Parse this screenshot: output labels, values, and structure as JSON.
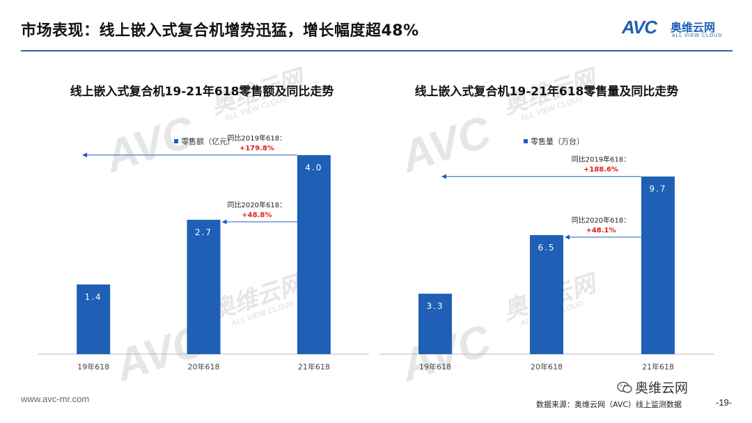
{
  "page": {
    "title": "市场表现：线上嵌入式复合机增势迅猛，增长幅度超48%",
    "logo_text": "AVC",
    "logo_cn": "奥维云网",
    "logo_en": "ALL VIEW CLOUD",
    "footer_url": "www.avc-mr.com",
    "footer_source": "数据来源：奥维云网（AVC）线上监测数据",
    "page_number": "-19-",
    "wechat_label": "奥维云网",
    "watermark_avc": "AVC",
    "watermark_cn": "奥维云网",
    "watermark_en": "ALL VIEW CLOUD",
    "accent_color": "#1f5fb6",
    "highlight_color": "#e02020"
  },
  "chart_data": [
    {
      "type": "bar",
      "title": "线上嵌入式复合机19-21年618零售额及同比走势",
      "legend": "零售额（亿元）",
      "legend_position": "top-left",
      "categories": [
        "19年618",
        "20年618",
        "21年618"
      ],
      "values": [
        1.4,
        2.7,
        4.0
      ],
      "value_labels": [
        "1.4",
        "2.7",
        "4.0"
      ],
      "ylim": [
        0,
        4.6
      ],
      "grid": false,
      "annotations": [
        {
          "label": "同比2019年618：",
          "value": "+179.8%"
        },
        {
          "label": "同比2020年618：",
          "value": "+48.8%"
        }
      ]
    },
    {
      "type": "bar",
      "title": "线上嵌入式复合机19-21年618零售量及同比走势",
      "legend": "零售量（万台）",
      "legend_position": "top-left",
      "categories": [
        "19年618",
        "20年618",
        "21年618"
      ],
      "values": [
        3.3,
        6.5,
        9.7
      ],
      "value_labels": [
        "3.3",
        "6.5",
        "9.7"
      ],
      "ylim": [
        0,
        12.5
      ],
      "grid": false,
      "annotations": [
        {
          "label": "同比2019年618：",
          "value": "+188.6%"
        },
        {
          "label": "同比2020年618：",
          "value": "+48.1%"
        }
      ]
    }
  ]
}
